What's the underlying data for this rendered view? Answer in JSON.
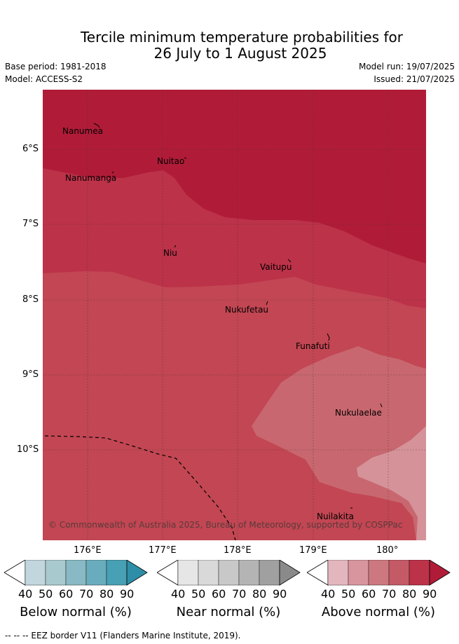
{
  "header": {
    "title_line1": "Tercile minimum temperature probabilities for",
    "title_line2": "26 July to 1 August 2025",
    "base_period": "Base period: 1981-2018",
    "model": "Model: ACCESS-S2",
    "model_run": "Model run: 19/07/2025",
    "issued": "Issued: 21/07/2025"
  },
  "map": {
    "lat_labels": [
      "6°S",
      "7°S",
      "8°S",
      "9°S",
      "10°S"
    ],
    "lon_labels": [
      "176°E",
      "177°E",
      "178°E",
      "179°E",
      "180°"
    ],
    "islands": [
      "Nanumea",
      "Nuitao",
      "Nanumanga",
      "Niu",
      "Vaitupu",
      "Nukufetau",
      "Funafuti",
      "Nukulaelae",
      "Nuilakita"
    ],
    "copyright": "© Commonwealth of Australia 2025, Bureau of Meteorology, supported by COSPPac",
    "colors": {
      "above_90": "#b01c38",
      "above_80": "#bc3249",
      "above_70": "#c24653",
      "above_60": "#c8676f",
      "above_50": "#d59299"
    }
  },
  "colorbars": [
    {
      "label": "Below normal (%)",
      "ticks": [
        "40",
        "50",
        "60",
        "70",
        "80",
        "90"
      ],
      "colors": [
        "#c1d6dd",
        "#a8c9ce",
        "#88b9c4",
        "#69acbd",
        "#47a0b3",
        "#2f8ea7"
      ]
    },
    {
      "label": "Near normal (%)",
      "ticks": [
        "40",
        "50",
        "60",
        "70",
        "80",
        "90"
      ],
      "colors": [
        "#e6e6e6",
        "#d9d9d9",
        "#c8c8c8",
        "#b4b4b4",
        "#a0a0a0",
        "#8a8a8a"
      ]
    },
    {
      "label": "Above normal (%)",
      "ticks": [
        "40",
        "50",
        "60",
        "70",
        "80",
        "90"
      ],
      "colors": [
        "#e3b6bd",
        "#d8959e",
        "#cd7880",
        "#c45a66",
        "#bc3249",
        "#b01c38"
      ]
    }
  ],
  "footer": {
    "eez_note": "--  --  -- EEZ border V11 (Flanders Marine Institute, 2019)."
  }
}
